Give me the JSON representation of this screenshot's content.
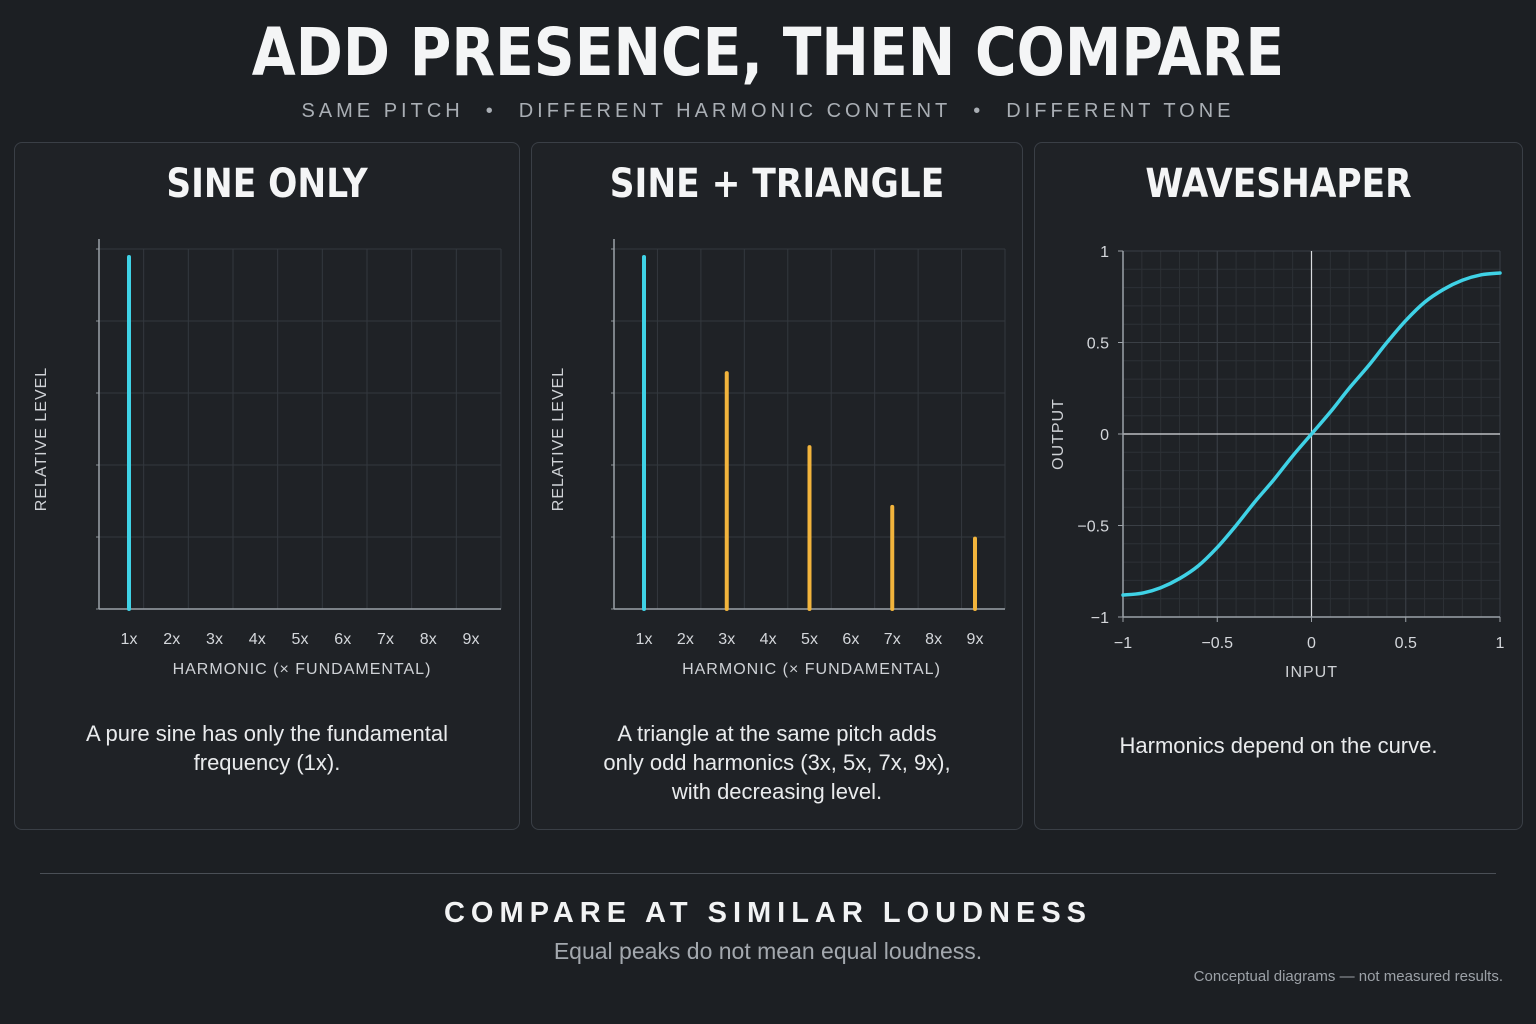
{
  "header": {
    "title": "ADD PRESENCE, THEN COMPARE",
    "subtitle_items": [
      "SAME PITCH",
      "DIFFERENT HARMONIC CONTENT",
      "DIFFERENT TONE"
    ],
    "separator": "•"
  },
  "panels": [
    {
      "title": "SINE ONLY",
      "caption_lines": [
        "A pure sine has only the fundamental",
        "frequency (1x)."
      ]
    },
    {
      "title": "SINE + TRIANGLE",
      "caption_lines": [
        "A triangle at the same pitch adds",
        "only odd harmonics (3x, 5x, 7x, 9x),",
        "with decreasing level."
      ]
    },
    {
      "title": "WAVESHAPER",
      "caption_lines": [
        "Harmonics depend on the curve."
      ]
    }
  ],
  "chart_data": [
    {
      "type": "bar",
      "xlabel": "HARMONIC (× FUNDAMENTAL)",
      "ylabel": "RELATIVE LEVEL",
      "categories": [
        "1x",
        "2x",
        "3x",
        "4x",
        "5x",
        "6x",
        "7x",
        "8x",
        "9x"
      ],
      "series": [
        {
          "values": [
            1,
            0,
            0,
            0,
            0,
            0,
            0,
            0,
            0
          ],
          "color": "#3fd2e6"
        }
      ],
      "ylim": [
        0,
        1
      ],
      "grid": true
    },
    {
      "type": "bar",
      "xlabel": "HARMONIC (× FUNDAMENTAL)",
      "ylabel": "RELATIVE LEVEL",
      "categories": [
        "1x",
        "2x",
        "3x",
        "4x",
        "5x",
        "6x",
        "7x",
        "8x",
        "9x"
      ],
      "series": [
        {
          "values": [
            1,
            0,
            0,
            0,
            0,
            0,
            0,
            0,
            0
          ],
          "color": "#3fd2e6"
        },
        {
          "values": [
            0,
            0,
            0.67,
            0,
            0.46,
            0,
            0.29,
            0,
            0.2
          ],
          "color": "#f2b43c"
        }
      ],
      "ylim": [
        0,
        1
      ],
      "grid": true
    },
    {
      "type": "line",
      "xlabel": "INPUT",
      "ylabel": "OUTPUT",
      "xlim": [
        -1,
        1
      ],
      "ylim": [
        -1,
        1
      ],
      "xticks": [
        "−1",
        "−0.5",
        "0",
        "0.5",
        "1"
      ],
      "yticks": [
        "1",
        "0.5",
        "0",
        "−0.5",
        "−1"
      ],
      "series": [
        {
          "color": "#3fd2e6",
          "x": [
            -1,
            -0.9,
            -0.8,
            -0.7,
            -0.6,
            -0.5,
            -0.4,
            -0.3,
            -0.2,
            -0.1,
            0,
            0.1,
            0.2,
            0.3,
            0.4,
            0.5,
            0.6,
            0.7,
            0.8,
            0.9,
            1
          ],
          "y": [
            -0.88,
            -0.87,
            -0.84,
            -0.79,
            -0.72,
            -0.62,
            -0.5,
            -0.37,
            -0.25,
            -0.12,
            0,
            0.12,
            0.25,
            0.37,
            0.5,
            0.62,
            0.72,
            0.79,
            0.84,
            0.87,
            0.88
          ]
        }
      ],
      "grid": true
    }
  ],
  "footer": {
    "title": "COMPARE AT SIMILAR LOUDNESS",
    "subtitle": "Equal peaks do not mean equal loudness.",
    "note": "Conceptual diagrams — not measured results."
  }
}
